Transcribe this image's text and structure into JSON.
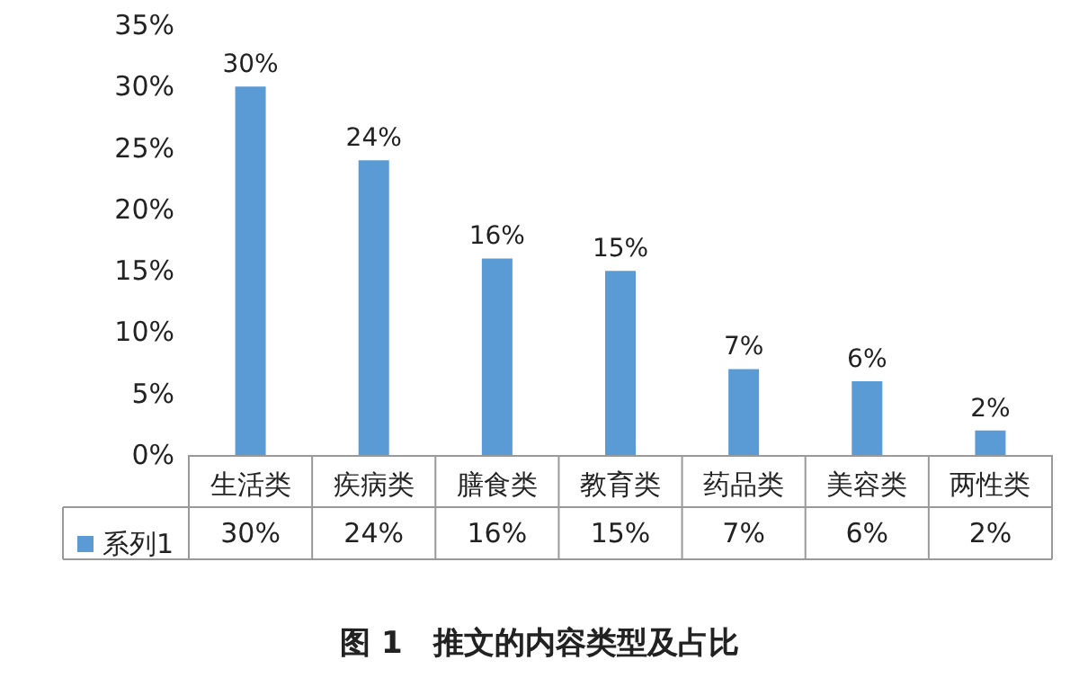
{
  "chart_data": {
    "type": "bar",
    "title": "图 1　推文的内容类型及占比",
    "categories": [
      "生活类",
      "疾病类",
      "膳食类",
      "教育类",
      "药品类",
      "美容类",
      "两性类"
    ],
    "series": [
      {
        "name": "系列1",
        "color": "#5b9bd5",
        "values": [
          30,
          24,
          16,
          15,
          7,
          6,
          2
        ],
        "value_labels": [
          "30%",
          "24%",
          "16%",
          "15%",
          "7%",
          "6%",
          "2%"
        ]
      }
    ],
    "ylim": [
      0,
      35
    ],
    "yticks": [
      {
        "value": 0,
        "label": "0%"
      },
      {
        "value": 5,
        "label": "5%"
      },
      {
        "value": 10,
        "label": "10%"
      },
      {
        "value": 15,
        "label": "15%"
      },
      {
        "value": 20,
        "label": "20%"
      },
      {
        "value": 25,
        "label": "25%"
      },
      {
        "value": 30,
        "label": "30%"
      },
      {
        "value": 35,
        "label": "35%"
      }
    ],
    "grid": false,
    "legend": "bottom left"
  }
}
